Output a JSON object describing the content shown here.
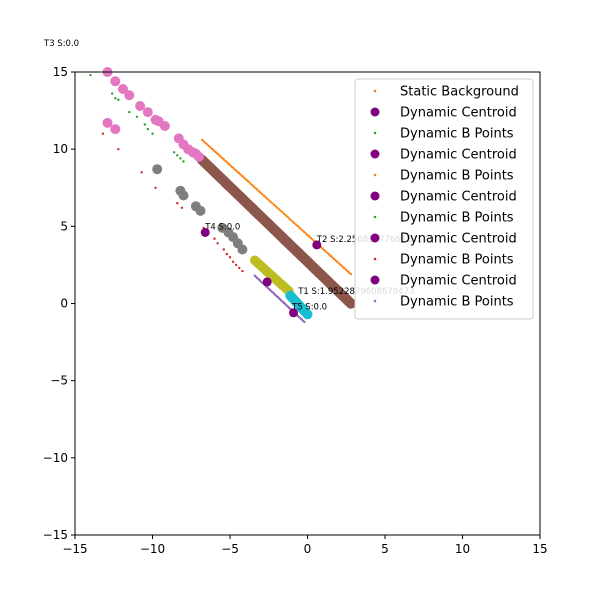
{
  "chart_data": {
    "type": "scatter",
    "title": "",
    "xlabel": "",
    "ylabel": "",
    "xlim": [
      -15,
      15
    ],
    "ylim": [
      -15,
      15
    ],
    "xticks": [
      -15,
      -10,
      -5,
      0,
      5,
      10,
      15
    ],
    "yticks": [
      -15,
      -10,
      -5,
      0,
      5,
      10,
      15
    ],
    "tick_labels_x": [
      "−15",
      "−10",
      "−5",
      "0",
      "5",
      "10",
      "15"
    ],
    "tick_labels_y": [
      "−15",
      "−10",
      "−5",
      "0",
      "5",
      "10",
      "15"
    ],
    "grid": false,
    "legend_position": "top-right",
    "legend": [
      {
        "label": "Static Background",
        "color": "#ff7f0e",
        "marker": "small"
      },
      {
        "label": "Dynamic Centroid",
        "color": "#800080",
        "marker": "large"
      },
      {
        "label": "Dynamic B Points",
        "color": "#2ca02c",
        "marker": "small"
      },
      {
        "label": "Dynamic Centroid",
        "color": "#800080",
        "marker": "large"
      },
      {
        "label": "Dynamic B Points",
        "color": "#ff7f0e",
        "marker": "small"
      },
      {
        "label": "Dynamic Centroid",
        "color": "#800080",
        "marker": "large"
      },
      {
        "label": "Dynamic B Points",
        "color": "#2ca02c",
        "marker": "small"
      },
      {
        "label": "Dynamic Centroid",
        "color": "#800080",
        "marker": "large"
      },
      {
        "label": "Dynamic B Points",
        "color": "#d62728",
        "marker": "small"
      },
      {
        "label": "Dynamic Centroid",
        "color": "#800080",
        "marker": "large"
      },
      {
        "label": "Dynamic B Points",
        "color": "#9467bd",
        "marker": "small"
      }
    ],
    "annotations": [
      {
        "text": "T3 S:0.0",
        "outside": true
      },
      {
        "text": "T4 S:0.0",
        "x": -6.6,
        "y": 4.8
      },
      {
        "text": "T2 S:2.2568307766133137",
        "x": 0.6,
        "y": 4.0
      },
      {
        "text": "T1 S:1.9522879608679473",
        "x": -0.6,
        "y": 0.6
      },
      {
        "text": "T5 S:0.0",
        "x": -1.0,
        "y": -0.4
      }
    ],
    "series": [
      {
        "color": "#2ca02c",
        "size": 1.2,
        "x": [
          -14.0,
          -12.6,
          -12.4,
          -12.2,
          -11.5,
          -11.0,
          -10.5,
          -10.3,
          -10.0,
          -8.6,
          -8.4,
          -8.2,
          -8.0
        ],
        "y": [
          14.8,
          13.6,
          13.3,
          13.2,
          12.4,
          12.1,
          11.6,
          11.3,
          11.0,
          9.8,
          9.6,
          9.4,
          9.2
        ]
      },
      {
        "color": "#d62728",
        "size": 1.2,
        "x": [
          -13.2,
          -12.2,
          -10.7,
          -9.8,
          -8.4,
          -8.1,
          -6.7,
          -6.0,
          -5.8,
          -5.4,
          -5.2,
          -5.0,
          -4.8,
          -4.6,
          -4.4,
          -4.2
        ],
        "y": [
          11.0,
          10.0,
          8.5,
          7.5,
          6.5,
          6.2,
          4.9,
          4.2,
          3.9,
          3.5,
          3.2,
          3.0,
          2.7,
          2.5,
          2.3,
          2.1
        ]
      },
      {
        "color": "#ff7f0e",
        "size": 1.2,
        "line": {
          "x0": -6.8,
          "y0": 10.6,
          "x1": 2.8,
          "y1": 1.9,
          "count": 90
        }
      },
      {
        "color": "#8c564b",
        "size": 5.2,
        "line": {
          "x0": -6.8,
          "y0": 9.3,
          "x1": 2.8,
          "y1": 0.0,
          "count": 95
        }
      },
      {
        "color": "#e377c2",
        "size": 5.0,
        "x": [
          -12.9,
          -12.4,
          -11.9,
          -11.5,
          -10.8,
          -10.3,
          -9.8,
          -9.6,
          -9.2,
          -8.3,
          -8.0,
          -7.7,
          -7.4,
          -7.2,
          -7.0,
          -12.9,
          -12.4
        ],
        "y": [
          15.0,
          14.4,
          13.9,
          13.5,
          12.8,
          12.4,
          11.9,
          11.8,
          11.5,
          10.7,
          10.3,
          10.0,
          9.8,
          9.7,
          9.5,
          11.7,
          11.3
        ]
      },
      {
        "color": "#7f7f7f",
        "size": 5.0,
        "x": [
          -9.7,
          -8.2,
          -8.0,
          -7.2,
          -6.9,
          -5.5,
          -5.1,
          -4.8,
          -4.5,
          -4.2
        ],
        "y": [
          8.7,
          7.3,
          7.0,
          6.3,
          6.0,
          4.9,
          4.6,
          4.3,
          3.9,
          3.5
        ]
      },
      {
        "color": "#bcbd22",
        "size": 4.8,
        "line": {
          "x0": -3.4,
          "y0": 2.8,
          "x1": -1.2,
          "y1": 0.8,
          "count": 18
        }
      },
      {
        "color": "#9467bd",
        "size": 1.2,
        "line": {
          "x0": -3.4,
          "y0": 1.8,
          "x1": -0.2,
          "y1": -1.2,
          "count": 40
        }
      },
      {
        "color": "#17becf",
        "size": 5.0,
        "line": {
          "x0": -1.1,
          "y0": 0.5,
          "x1": 0.0,
          "y1": -0.7,
          "count": 10
        }
      },
      {
        "color": "#800080",
        "size": 4.5,
        "x": [
          -6.6,
          0.6,
          -2.6,
          -0.9
        ],
        "y": [
          4.6,
          3.8,
          1.4,
          -0.6
        ]
      }
    ]
  }
}
